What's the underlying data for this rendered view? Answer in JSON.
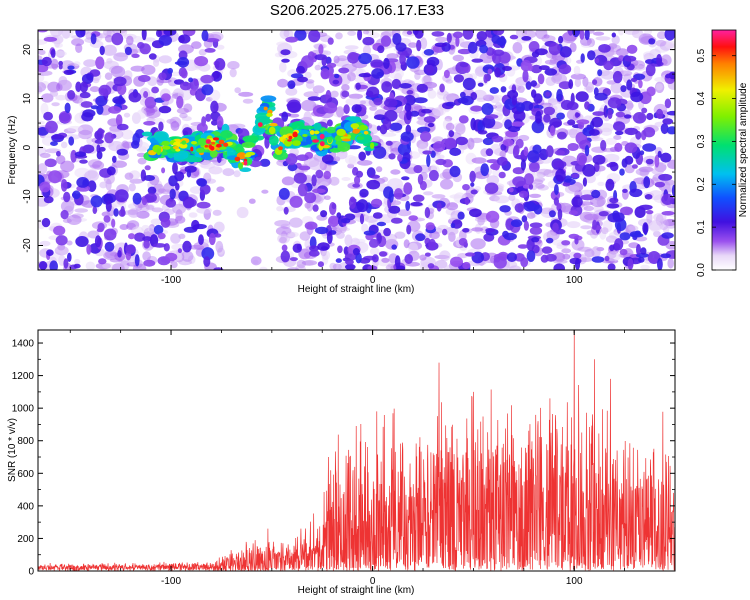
{
  "title": "S206.2025.275.06.17.E33",
  "chart_data": [
    {
      "type": "heatmap",
      "xlabel": "Height of straight line (km)",
      "ylabel": "Frequency (Hz)",
      "xlim": [
        -166,
        150
      ],
      "ylim": [
        -25,
        24
      ],
      "xticks": [
        "-100",
        "0",
        "100"
      ],
      "yticks": [
        "-20",
        "-10",
        "0",
        "10",
        "20"
      ],
      "colorbar": {
        "label": "Normalized spectral amplitude",
        "range": [
          0,
          0.56
        ],
        "ticks": [
          "0.0",
          "0.1",
          "0.2",
          "0.3",
          "0.4",
          "0.5"
        ]
      },
      "features": {
        "blank_band_x": [
          -75,
          -45
        ],
        "ridge": [
          {
            "x": -112,
            "y": 0.5
          },
          {
            "x": -100,
            "y": 0
          },
          {
            "x": -88,
            "y": 0
          },
          {
            "x": -80,
            "y": 0.5
          },
          {
            "x": -73,
            "y": 1.5
          },
          {
            "x": -64,
            "y": -3.5
          },
          {
            "x": -52,
            "y": 8
          },
          {
            "x": -47,
            "y": 0
          },
          {
            "x": -40,
            "y": 2
          },
          {
            "x": -33,
            "y": 3
          },
          {
            "x": -25,
            "y": 1.5
          },
          {
            "x": -18,
            "y": 1
          },
          {
            "x": -10,
            "y": 4
          },
          {
            "x": 0,
            "y": 1.5
          }
        ]
      }
    },
    {
      "type": "line",
      "xlabel": "Height of straight line (km)",
      "ylabel": "SNR (10 * v/v)",
      "xlim": [
        -166,
        150
      ],
      "ylim": [
        0,
        1480
      ],
      "xticks": [
        "-100",
        "0",
        "100"
      ],
      "yticks": [
        "0",
        "200",
        "400",
        "600",
        "800",
        "1000",
        "1200",
        "1400"
      ],
      "color": "#ee3333",
      "envelope": [
        {
          "x": -166,
          "base": 20,
          "amp": 25
        },
        {
          "x": -80,
          "base": 25,
          "amp": 35
        },
        {
          "x": -55,
          "base": 60,
          "amp": 180
        },
        {
          "x": -45,
          "base": 70,
          "amp": 110
        },
        {
          "x": -25,
          "base": 120,
          "amp": 300
        },
        {
          "x": -20,
          "base": 180,
          "amp": 700
        },
        {
          "x": 0,
          "base": 250,
          "amp": 800
        },
        {
          "x": 50,
          "base": 280,
          "amp": 900
        },
        {
          "x": 100,
          "base": 280,
          "amp": 850
        },
        {
          "x": 150,
          "base": 260,
          "amp": 750
        }
      ],
      "peaks": [
        {
          "x": -52,
          "y": 260
        },
        {
          "x": -22,
          "y": 700
        },
        {
          "x": 2,
          "y": 980
        },
        {
          "x": 33,
          "y": 1280
        },
        {
          "x": 50,
          "y": 1100
        },
        {
          "x": 100,
          "y": 1480
        },
        {
          "x": 110,
          "y": 1300
        },
        {
          "x": 118,
          "y": 1180
        },
        {
          "x": 88,
          "y": 1060
        }
      ]
    }
  ]
}
